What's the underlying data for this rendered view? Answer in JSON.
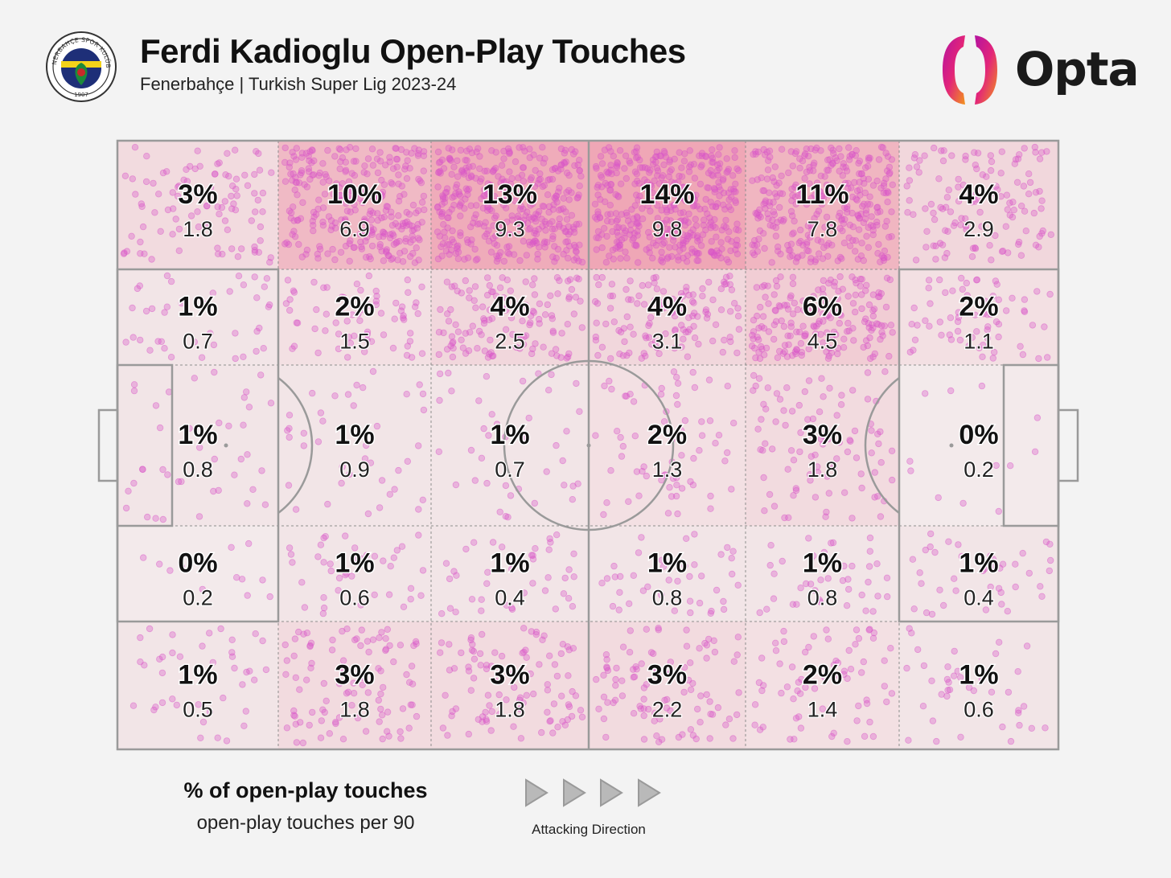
{
  "header": {
    "title": "Ferdi Kadioglu Open-Play Touches",
    "subtitle": "Fenerbahçe | Turkish Super Lig 2023-24",
    "crest_top_text": "FENERBAHÇE SPOR KULÜBÜ",
    "crest_year": "1907",
    "brand": "Opta"
  },
  "legend": {
    "primary": "% of open-play touches",
    "secondary": "open-play touches per 90",
    "direction_label": "Attacking Direction"
  },
  "colors": {
    "background": "#f3f3f3",
    "heat": "#e8496a",
    "dots": "#d957c8",
    "lines": "#9a9a9a",
    "opta_gradient": [
      "#d1127f",
      "#f08a1c"
    ]
  },
  "chart_data": {
    "type": "heatmap",
    "attacking_direction": "left-to-right",
    "rows": [
      "row-1",
      "row-2",
      "row-3",
      "row-4",
      "row-5"
    ],
    "columns": [
      "col-1",
      "col-2",
      "col-3",
      "col-4",
      "col-5",
      "col-6"
    ],
    "cells": [
      [
        {
          "pct": "3%",
          "per90": "1.8",
          "v": 3
        },
        {
          "pct": "10%",
          "per90": "6.9",
          "v": 10
        },
        {
          "pct": "13%",
          "per90": "9.3",
          "v": 13
        },
        {
          "pct": "14%",
          "per90": "9.8",
          "v": 14
        },
        {
          "pct": "11%",
          "per90": "7.8",
          "v": 11
        },
        {
          "pct": "4%",
          "per90": "2.9",
          "v": 4
        }
      ],
      [
        {
          "pct": "1%",
          "per90": "0.7",
          "v": 1
        },
        {
          "pct": "2%",
          "per90": "1.5",
          "v": 2
        },
        {
          "pct": "4%",
          "per90": "2.5",
          "v": 4
        },
        {
          "pct": "4%",
          "per90": "3.1",
          "v": 4
        },
        {
          "pct": "6%",
          "per90": "4.5",
          "v": 6
        },
        {
          "pct": "2%",
          "per90": "1.1",
          "v": 2
        }
      ],
      [
        {
          "pct": "1%",
          "per90": "0.8",
          "v": 1
        },
        {
          "pct": "1%",
          "per90": "0.9",
          "v": 1
        },
        {
          "pct": "1%",
          "per90": "0.7",
          "v": 1
        },
        {
          "pct": "2%",
          "per90": "1.3",
          "v": 2
        },
        {
          "pct": "3%",
          "per90": "1.8",
          "v": 3
        },
        {
          "pct": "0%",
          "per90": "0.2",
          "v": 0
        }
      ],
      [
        {
          "pct": "0%",
          "per90": "0.2",
          "v": 0
        },
        {
          "pct": "1%",
          "per90": "0.6",
          "v": 1
        },
        {
          "pct": "1%",
          "per90": "0.4",
          "v": 1
        },
        {
          "pct": "1%",
          "per90": "0.8",
          "v": 1
        },
        {
          "pct": "1%",
          "per90": "0.8",
          "v": 1
        },
        {
          "pct": "1%",
          "per90": "0.4",
          "v": 1
        }
      ],
      [
        {
          "pct": "1%",
          "per90": "0.5",
          "v": 1
        },
        {
          "pct": "3%",
          "per90": "1.8",
          "v": 3
        },
        {
          "pct": "3%",
          "per90": "1.8",
          "v": 3
        },
        {
          "pct": "3%",
          "per90": "2.2",
          "v": 3
        },
        {
          "pct": "2%",
          "per90": "1.4",
          "v": 2
        },
        {
          "pct": "1%",
          "per90": "0.6",
          "v": 1
        }
      ]
    ],
    "value_max": 14
  }
}
